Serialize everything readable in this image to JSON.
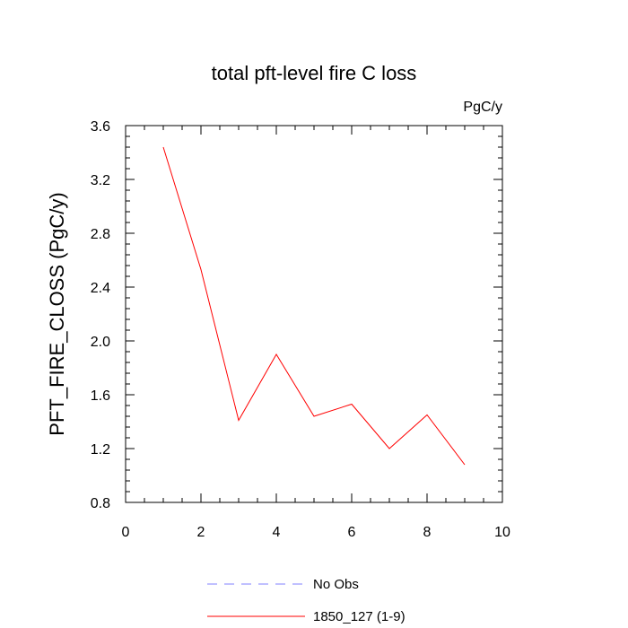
{
  "chart_data": {
    "type": "line",
    "title": "total pft-level fire C loss",
    "units_label": "PgC/y",
    "xlabel": "",
    "ylabel": "PFT_FIRE_CLOSS  (PgC/y)",
    "xlim": [
      0,
      10
    ],
    "ylim": [
      0.8,
      3.6
    ],
    "x_major_ticks": [
      0,
      2,
      4,
      6,
      8,
      10
    ],
    "x_tick_labels": [
      "0",
      "2",
      "4",
      "6",
      "8",
      "10"
    ],
    "y_major_ticks": [
      0.8,
      1.2,
      1.6,
      2.0,
      2.4,
      2.8,
      3.2,
      3.6
    ],
    "y_tick_labels": [
      "0.8",
      "1.2",
      "1.6",
      "2.0",
      "2.4",
      "2.8",
      "3.2",
      "3.6"
    ],
    "x_minor_step": 0.5,
    "y_minor_step": 0.08,
    "grid": false,
    "legend_position": "bottom-center",
    "series": [
      {
        "name": "1850_127 (1-9)",
        "color": "#ff0000",
        "dash": "solid",
        "x": [
          1,
          2,
          3,
          4,
          5,
          6,
          7,
          8,
          9
        ],
        "values": [
          3.44,
          2.53,
          1.41,
          1.9,
          1.44,
          1.53,
          1.2,
          1.45,
          1.08
        ]
      }
    ],
    "legend": [
      {
        "label": "No Obs",
        "color": "#8080ff",
        "dash": "dashed"
      },
      {
        "label": "1850_127 (1-9)",
        "color": "#ff0000",
        "dash": "solid"
      }
    ]
  }
}
